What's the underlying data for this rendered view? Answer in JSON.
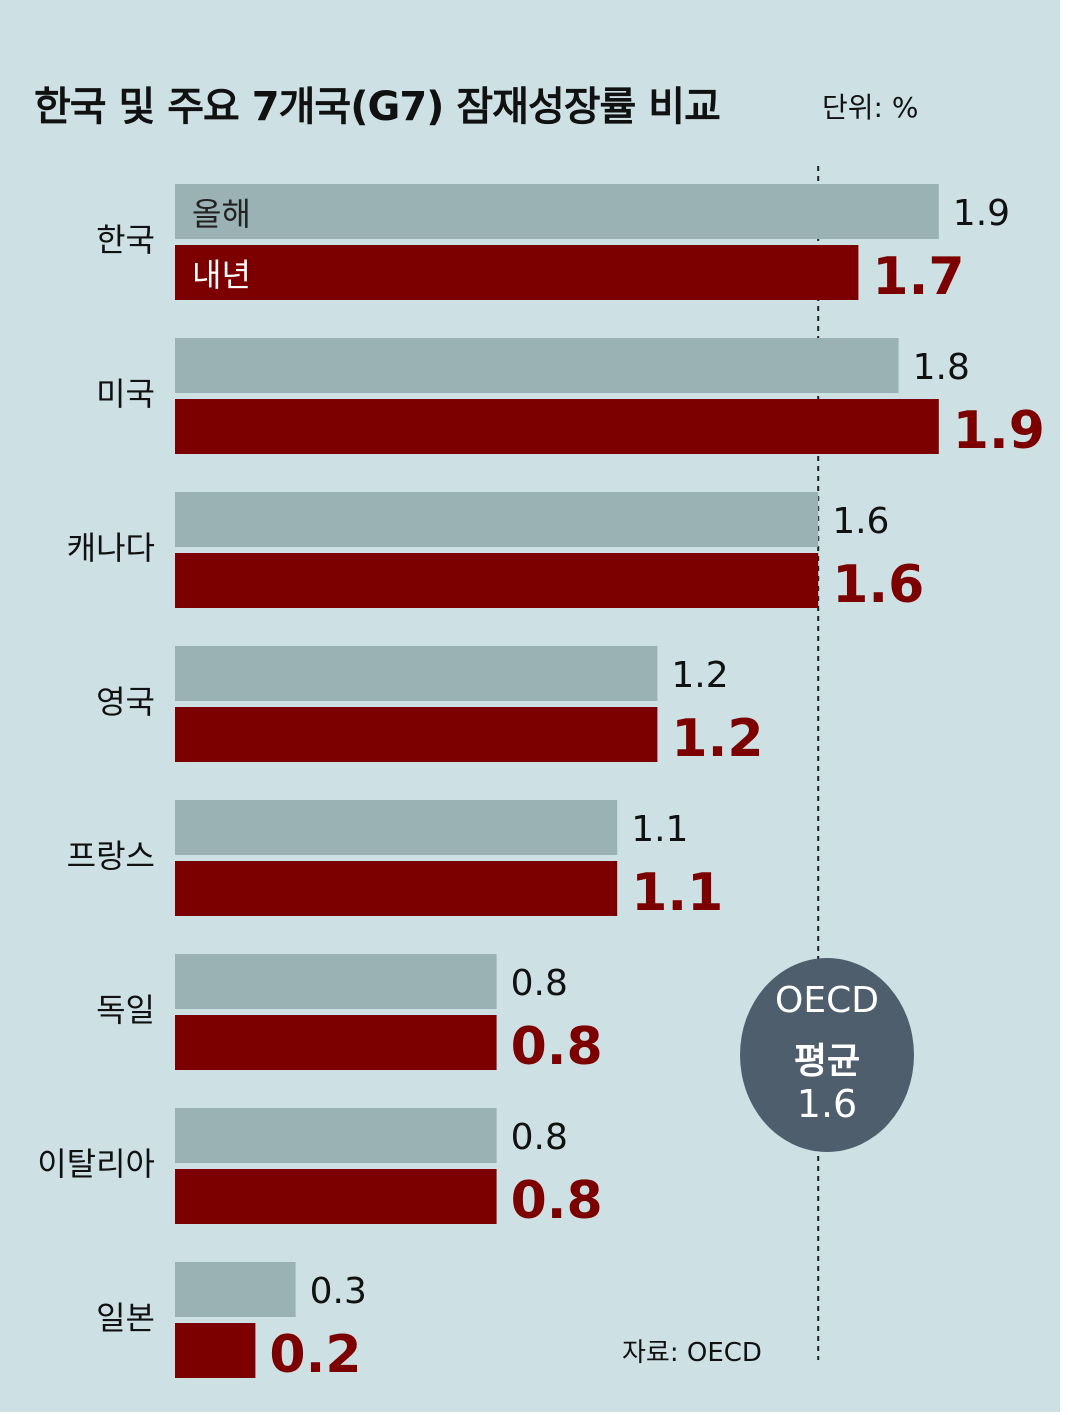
{
  "title": "한국 및 주요 7개국(G7) 잠재성장률 비교",
  "unit_label": "단위: %",
  "source": "자료: OECD",
  "oecd_badge": {
    "line1": "OECD",
    "line2": "평균",
    "value": "1.6"
  },
  "colors": {
    "background": "#cde1e4",
    "this_year": "#9ab2b3",
    "next_year": "#7c0000",
    "badge": "#4e5e6d"
  },
  "chart_data": {
    "type": "bar",
    "orientation": "horizontal",
    "categories": [
      "한국",
      "미국",
      "캐나다",
      "영국",
      "프랑스",
      "독일",
      "이탈리아",
      "일본"
    ],
    "series": [
      {
        "name": "올해",
        "values": [
          1.9,
          1.8,
          1.6,
          1.2,
          1.1,
          0.8,
          0.8,
          0.3
        ]
      },
      {
        "name": "내년",
        "values": [
          1.7,
          1.9,
          1.6,
          1.2,
          1.1,
          0.8,
          0.8,
          0.2
        ]
      }
    ],
    "value_labels": [
      [
        "1.9",
        "1.8",
        "1.6",
        "1.2",
        "1.1",
        "0.8",
        "0.8",
        "0.3"
      ],
      [
        "1.7",
        "1.9",
        "1.6",
        "1.2",
        "1.1",
        "0.8",
        "0.8",
        "0.2"
      ]
    ],
    "reference_line": {
      "value": 1.6,
      "style": "dashed"
    },
    "legend_placement": "inside-first-bars"
  }
}
